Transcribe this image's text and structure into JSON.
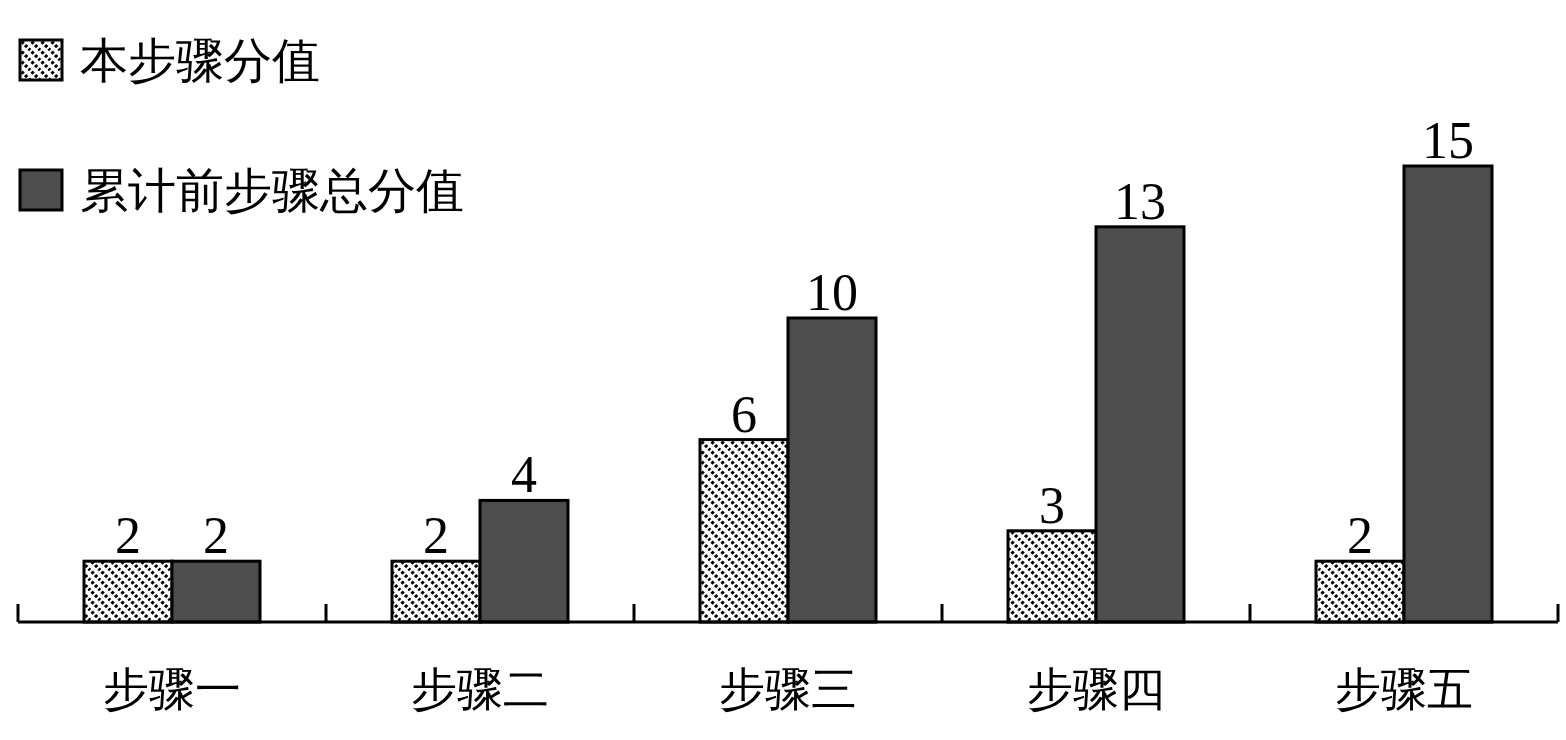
{
  "chart_data": {
    "type": "bar",
    "categories": [
      "步骤一",
      "步骤二",
      "步骤三",
      "步骤四",
      "步骤五"
    ],
    "series": [
      {
        "name": "本步骤分值",
        "color": "#000000",
        "values": [
          2,
          2,
          6,
          3,
          2
        ]
      },
      {
        "name": "累计前步骤总分值",
        "color": "#4d4d4d",
        "values": [
          2,
          4,
          10,
          13,
          15
        ]
      }
    ],
    "data_labels": true,
    "legend": "top left"
  }
}
